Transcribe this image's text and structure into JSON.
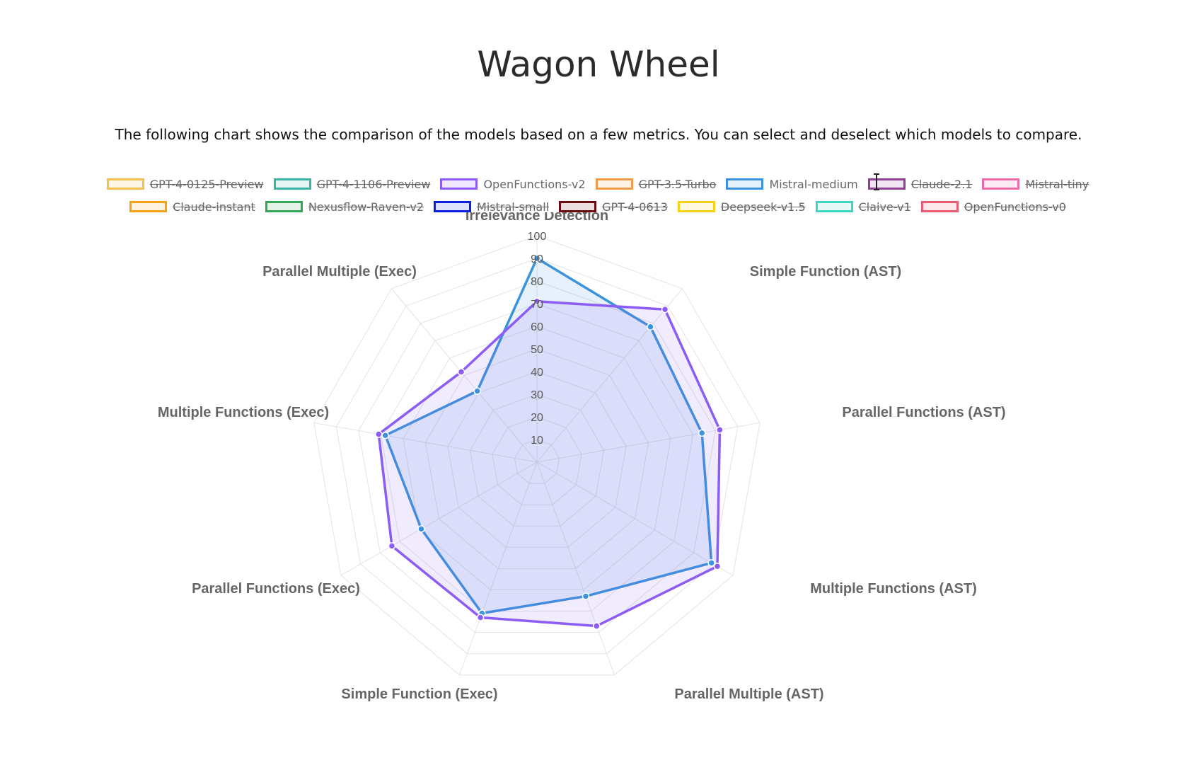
{
  "page": {
    "title": "Wagon Wheel",
    "description": "The following chart shows the comparison of the models based on a few metrics. You can select and deselect which models to compare."
  },
  "legend": {
    "rows": [
      [
        {
          "name": "GPT-4-0125-Preview",
          "color": "#f6c04e",
          "hidden": true
        },
        {
          "name": "GPT-4-1106-Preview",
          "color": "#3bb3a5",
          "hidden": true
        },
        {
          "name": "OpenFunctions-v2",
          "color": "#8b5cf6",
          "hidden": false
        },
        {
          "name": "GPT-3.5-Turbo",
          "color": "#f09a4a",
          "hidden": true
        },
        {
          "name": "Mistral-medium",
          "color": "#3b93dd",
          "hidden": false
        },
        {
          "name": "Claude-2.1",
          "color": "#8e3f96",
          "hidden": true
        },
        {
          "name": "Mistral-tiny",
          "color": "#ef6aa9",
          "hidden": true
        }
      ],
      [
        {
          "name": "Claude-instant",
          "color": "#f7a114",
          "hidden": true
        },
        {
          "name": "Nexusflow-Raven-v2",
          "color": "#34a85a",
          "hidden": true
        },
        {
          "name": "Mistral-small",
          "color": "#0a1fe0",
          "hidden": true
        },
        {
          "name": "GPT-4-0613",
          "color": "#6b0a10",
          "hidden": true
        },
        {
          "name": "Deepseek-v1.5",
          "color": "#f8d018",
          "hidden": true
        },
        {
          "name": "Claive-v1",
          "color": "#3dd6c3",
          "hidden": true
        },
        {
          "name": "OpenFunctions-v0",
          "color": "#ee5c74",
          "hidden": true
        }
      ]
    ]
  },
  "chart_data": {
    "type": "radar",
    "axes": [
      "Irrelevance Detection",
      "Simple Function (AST)",
      "Parallel Functions (AST)",
      "Multiple Functions (AST)",
      "Parallel Multiple (AST)",
      "Simple Function (Exec)",
      "Parallel Functions (Exec)",
      "Multiple Functions (Exec)",
      "Parallel Multiple (Exec)"
    ],
    "ticks": [
      "10",
      "20",
      "30",
      "40",
      "50",
      "60",
      "70",
      "80",
      "90",
      "100"
    ],
    "range": [
      0,
      100
    ],
    "series": [
      {
        "name": "OpenFunctions-v2",
        "color": "#8b5cf6",
        "fill": "rgba(139,92,246,0.12)",
        "values": [
          71,
          88,
          82,
          92,
          77,
          73,
          74,
          71,
          52
        ]
      },
      {
        "name": "Mistral-medium",
        "color": "#3b93dd",
        "fill": "rgba(59,147,221,0.13)",
        "values": [
          90,
          78,
          74,
          89,
          63,
          71,
          59,
          68,
          41
        ]
      }
    ]
  }
}
